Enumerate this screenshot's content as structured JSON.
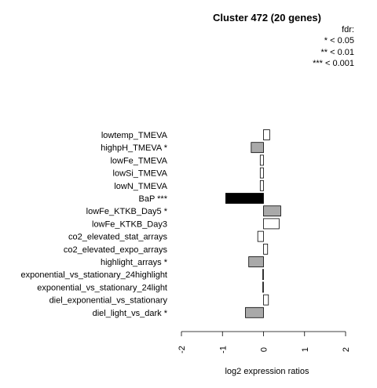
{
  "chart_data": {
    "type": "bar",
    "orientation": "horizontal",
    "title": "Cluster 472 (20 genes)",
    "xlabel": "log2 expression ratios",
    "ylabel": "",
    "xlim": [
      -2,
      2
    ],
    "xticks": [
      "-2",
      "-1",
      "0",
      "1",
      "2"
    ],
    "legend": {
      "title": "fdr:",
      "entries": [
        "* < 0.05",
        "** < 0.01",
        "*** < 0.001"
      ],
      "placement": "top-right"
    },
    "categories": [
      "lowtemp_TMEVA",
      "highpH_TMEVA *",
      "lowFe_TMEVA",
      "lowSi_TMEVA",
      "lowN_TMEVA",
      "BaP ***",
      "lowFe_KTKB_Day5 *",
      "lowFe_KTKB_Day3",
      "co2_elevated_stat_arrays",
      "co2_elevated_expo_arrays",
      "highlight_arrays *",
      "exponential_vs_stationary_24highlight",
      "exponential_vs_stationary_24light",
      "diel_exponential_vs_stationary",
      "diel_light_vs_dark *"
    ],
    "values": [
      0.15,
      -0.3,
      -0.08,
      -0.08,
      -0.08,
      -0.92,
      0.42,
      0.38,
      -0.14,
      0.1,
      -0.36,
      -0.02,
      -0.02,
      0.12,
      -0.44
    ],
    "fills": [
      "#ffffff",
      "#a9a9a9",
      "#ffffff",
      "#ffffff",
      "#ffffff",
      "#000000",
      "#a9a9a9",
      "#ffffff",
      "#ffffff",
      "#ffffff",
      "#a9a9a9",
      "#ffffff",
      "#ffffff",
      "#ffffff",
      "#a9a9a9"
    ],
    "grid": false
  }
}
